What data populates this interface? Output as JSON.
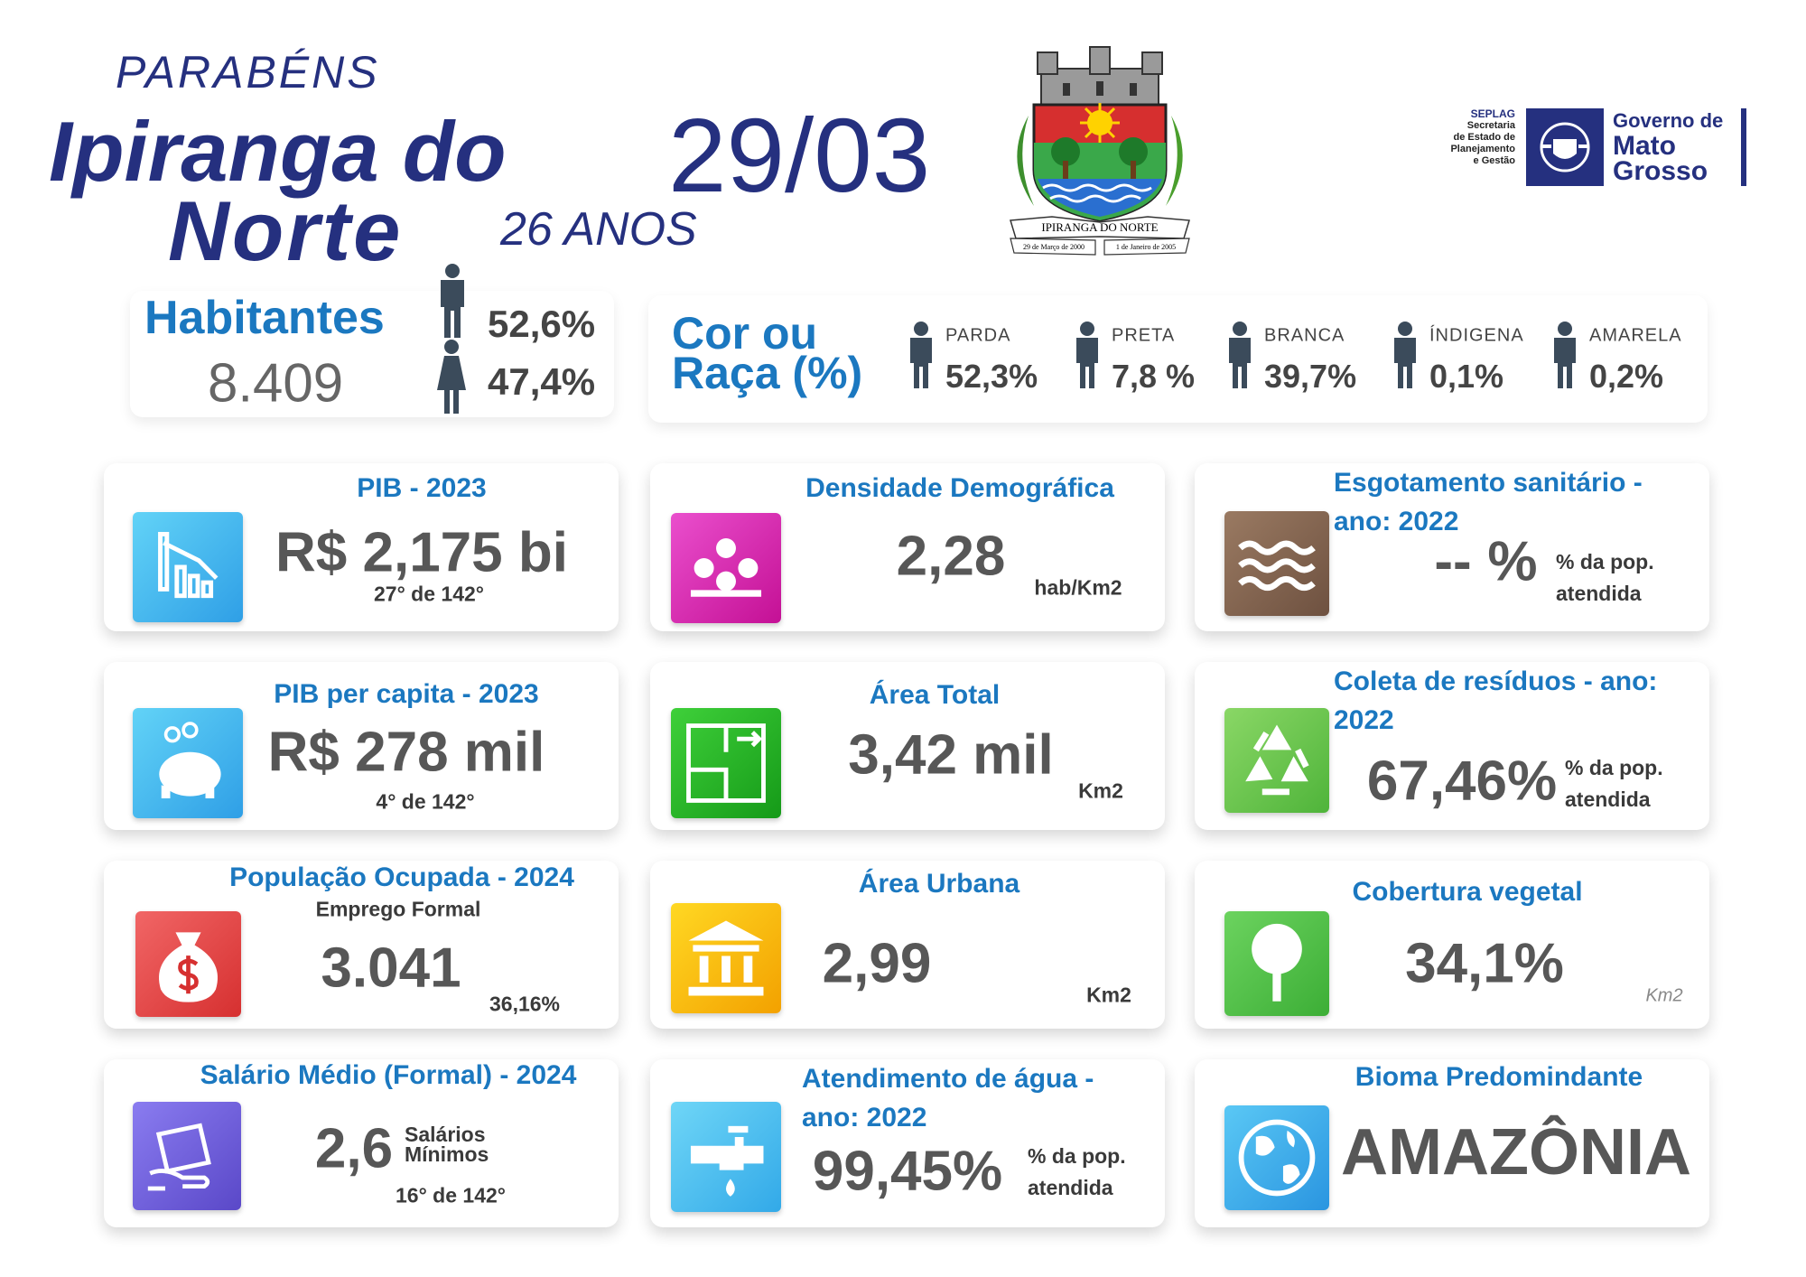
{
  "header": {
    "greeting": "PARABÉNS",
    "city_line1": "Ipiranga do",
    "city_line2": "Norte",
    "date": "29/03",
    "age": "26 ANOS"
  },
  "emblem": {
    "banner": "IPIRANGA DO NORTE",
    "left_date": "29 de Março de 2000",
    "right_date": "1 de Janeiro de 2005"
  },
  "logo": {
    "seplag": "SEPLAG",
    "seplag_lines": [
      "Secretaria",
      "de Estado de",
      "Planejamento",
      "e Gestão"
    ],
    "government": [
      "Governo de",
      "Mato",
      "Grosso"
    ]
  },
  "population": {
    "label": "Habitantes",
    "total": "8.409",
    "male": "52,6%",
    "female": "47,4%"
  },
  "race": {
    "title_line1": "Cor ou",
    "title_line2": "Raça (%)",
    "groups": [
      {
        "label": "PARDA",
        "value": "52,3%"
      },
      {
        "label": "PRETA",
        "value": "7,8 %"
      },
      {
        "label": "BRANCA",
        "value": "39,7%"
      },
      {
        "label": "ÍNDIGENA",
        "value": "0,1%"
      },
      {
        "label": "AMARELA",
        "value": "0,2%"
      }
    ]
  },
  "cards": [
    {
      "title": "PIB - 2023",
      "value": "R$ 2,175 bi",
      "rank": "27° de 142°"
    },
    {
      "title": "Densidade Demográfica",
      "value": "2,28",
      "unit": "hab/Km2"
    },
    {
      "title": "Esgotamento sanitário - ano: 2022",
      "value": "--",
      "suffix": "%",
      "unit": "% da pop. atendida"
    },
    {
      "title": "PIB per capita - 2023",
      "value": "R$ 278 mil",
      "rank": "4° de 142°"
    },
    {
      "title": "Área Total",
      "value": "3,42 mil",
      "unit": "Km2"
    },
    {
      "title": "Coleta de resíduos - ano: 2022",
      "value": "67,46%",
      "unit": "% da pop. atendida"
    },
    {
      "title": "População Ocupada - 2024",
      "subtitle": "Emprego Formal",
      "value": "3.041",
      "rank": "36,16%"
    },
    {
      "title": "Área Urbana",
      "value": "2,99",
      "unit": "Km2"
    },
    {
      "title": "Cobertura vegetal",
      "value": "34,1%",
      "unit": "Km2"
    },
    {
      "title": "Salário Médio (Formal) - 2024",
      "value": "2,6",
      "unit": "Salários Mínimos",
      "rank": "16° de 142°"
    },
    {
      "title": "Atendimento de água - ano: 2022",
      "value": "99,45%",
      "unit": "% da pop. atendida"
    },
    {
      "title": "Bioma Predomindante",
      "value": "AMAZÔNIA"
    }
  ]
}
